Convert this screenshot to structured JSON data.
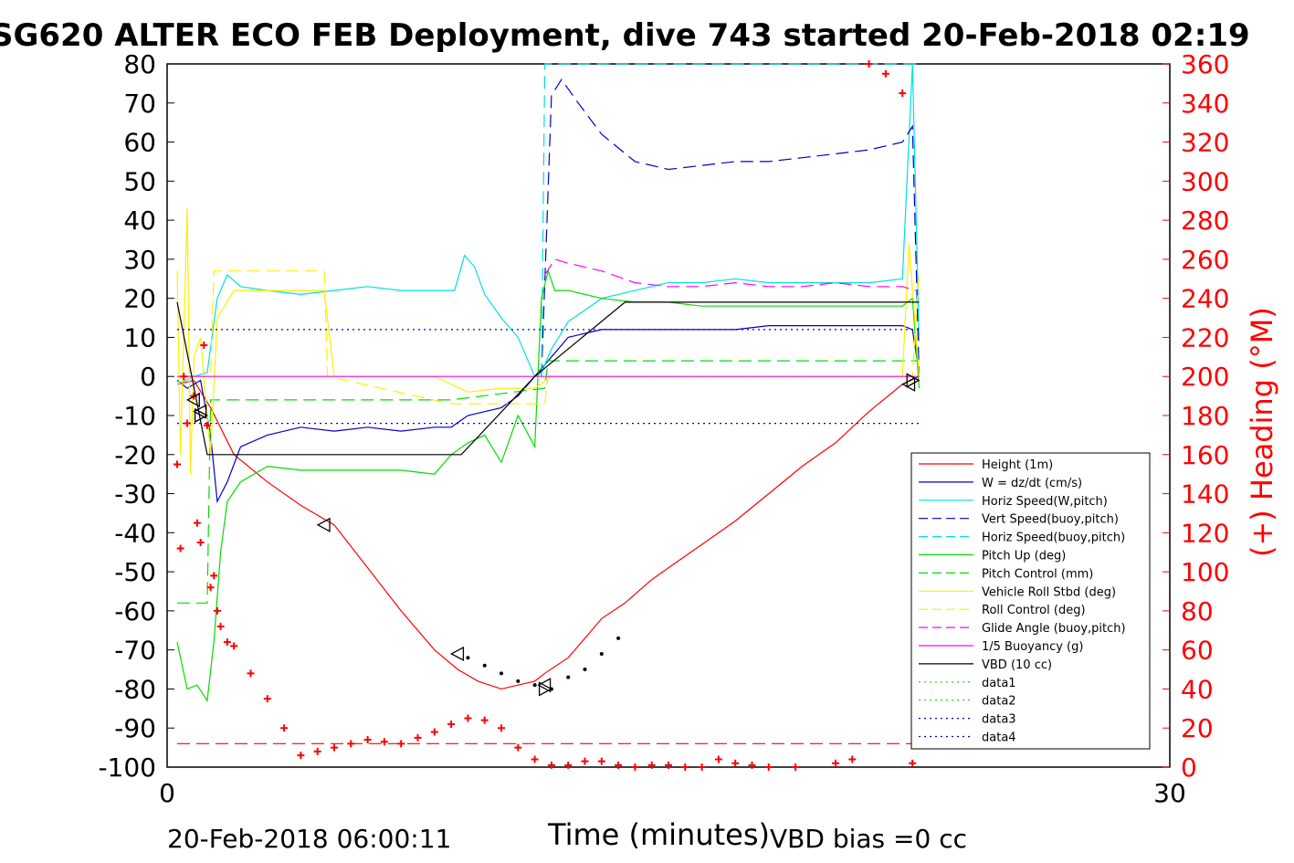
{
  "title": "SG620 ALTER ECO FEB Deployment, dive 743 started 20-Feb-2018 02:19",
  "footer": {
    "start_time": "20-Feb-2018 06:00:11",
    "vbd_bias": "VBD bias =0 cc"
  },
  "colors": {
    "axis": "#000000",
    "right_axis": "#ff0000",
    "red": "#ff0000",
    "blue": "#0000cc",
    "cyan": "#00e0e0",
    "green": "#00dd00",
    "yellow": "#ffee00",
    "magenta": "#ff00ff",
    "black": "#000000"
  },
  "chart_data": {
    "type": "line",
    "xlabel": "Time (minutes)",
    "ylabel": "",
    "y2label": "(+) Heading (°M)",
    "xlim": [
      0,
      30
    ],
    "ylim": [
      -100,
      80
    ],
    "y2lim": [
      0,
      360
    ],
    "xticks": [
      0,
      30
    ],
    "yticks": [
      80,
      70,
      60,
      50,
      40,
      30,
      20,
      10,
      0,
      -10,
      -20,
      -30,
      -40,
      -50,
      -60,
      -70,
      -80,
      -90,
      -100
    ],
    "y2ticks": [
      360,
      340,
      320,
      300,
      280,
      260,
      240,
      220,
      200,
      180,
      160,
      140,
      120,
      100,
      80,
      60,
      40,
      20,
      0
    ],
    "grid": false,
    "legend_position": "lower-right",
    "series": [
      {
        "name": "Height (1m)",
        "color": "#ff0000",
        "style": "solid",
        "x": [
          0.3,
          0.8,
          1.3,
          2.0,
          3.0,
          4.0,
          5.0,
          6.0,
          7.0,
          8.0,
          8.7,
          9.3,
          10.0,
          11.0,
          11.3,
          12.0,
          12.6,
          13.0,
          13.7,
          14.5,
          15.0,
          16.0,
          17.0,
          18.0,
          19.0,
          20.0,
          21.0,
          22.0,
          22.5
        ],
        "y": [
          -2,
          -1,
          -8,
          -20,
          -27,
          -33,
          -38,
          -49,
          -60,
          -70,
          -75,
          -78,
          -80,
          -78,
          -76,
          -72,
          -66,
          -62,
          -58,
          -52,
          -49,
          -43,
          -37,
          -30,
          -23,
          -17,
          -9,
          -2,
          0
        ]
      },
      {
        "name": "W = dz/dt (cm/s)",
        "color": "#0000cc",
        "style": "solid",
        "x": [
          0.3,
          0.6,
          1.0,
          1.3,
          1.5,
          1.8,
          2.2,
          3.0,
          4.0,
          5.0,
          6.0,
          7.0,
          8.0,
          8.5,
          9.0,
          10.0,
          10.5,
          11.0,
          11.5,
          12.0,
          13.0,
          14.0,
          15.0,
          16.0,
          17.0,
          18.0,
          19.0,
          20.0,
          21.0,
          22.0,
          22.3,
          22.5
        ],
        "y": [
          -1,
          -3,
          -1,
          -15,
          -32,
          -27,
          -18,
          -15,
          -13,
          -14,
          -13,
          -14,
          -13,
          -13,
          -10,
          -8,
          -5,
          0,
          5,
          10,
          12,
          12,
          12,
          12,
          12,
          13,
          13,
          13,
          13,
          13,
          12,
          1
        ]
      },
      {
        "name": "Horiz Speed(W,pitch)",
        "color": "#00e0e0",
        "style": "solid",
        "x": [
          0.3,
          0.8,
          1.2,
          1.5,
          1.8,
          2.2,
          3.0,
          4.0,
          5.0,
          6.0,
          7.0,
          8.0,
          8.6,
          8.9,
          9.2,
          9.5,
          10.0,
          10.5,
          11.0,
          11.2,
          11.5,
          12.0,
          13.0,
          14.0,
          15.0,
          16.0,
          17.0,
          18.0,
          19.0,
          20.0,
          21.0,
          22.0,
          22.3,
          22.5
        ],
        "y": [
          -2,
          0,
          1,
          20,
          26,
          23,
          22,
          21,
          22,
          23,
          22,
          22,
          22,
          31,
          28,
          21,
          15,
          10,
          0,
          1,
          7,
          14,
          20,
          22,
          24,
          24,
          25,
          24,
          24,
          24,
          24,
          25,
          80,
          9
        ]
      },
      {
        "name": "Vert Speed(buoy,pitch)",
        "color": "#0000cc",
        "style": "dashed",
        "x": [
          11.2,
          11.5,
          11.8,
          12.3,
          13.0,
          14.0,
          15.0,
          16.0,
          17.0,
          18.0,
          19.0,
          20.0,
          21.0,
          22.0,
          22.3,
          22.5
        ],
        "y": [
          0,
          72,
          76,
          70,
          62,
          55,
          53,
          54,
          55,
          55,
          56,
          57,
          58,
          60,
          64,
          0
        ]
      },
      {
        "name": "Horiz Speed(buoy,pitch)",
        "color": "#00e0e0",
        "style": "dashed",
        "x": [
          11.2,
          11.3,
          11.5,
          22.4,
          22.5
        ],
        "y": [
          0,
          80,
          80,
          80,
          80
        ]
      },
      {
        "name": "Pitch Up (deg)",
        "color": "#00dd00",
        "style": "solid",
        "x": [
          0.3,
          0.6,
          0.9,
          1.2,
          1.4,
          1.6,
          1.8,
          2.2,
          3.0,
          4.0,
          5.0,
          6.0,
          7.0,
          8.0,
          8.5,
          9.0,
          9.5,
          10.0,
          10.5,
          11.0,
          11.2,
          11.4,
          11.6,
          12.0,
          13.0,
          14.0,
          15.0,
          16.0,
          17.0,
          18.0,
          19.0,
          20.0,
          21.0,
          22.0,
          22.3,
          22.5
        ],
        "y": [
          -68,
          -80,
          -79,
          -83,
          -68,
          -45,
          -32,
          -27,
          -23,
          -24,
          -24,
          -24,
          -24,
          -25,
          -20,
          -17,
          -15,
          -22,
          -10,
          -18,
          20,
          27,
          22,
          22,
          20,
          19,
          19,
          18,
          18,
          18,
          18,
          18,
          18,
          18,
          20,
          -3
        ]
      },
      {
        "name": "Pitch Control (mm)",
        "color": "#00dd00",
        "style": "dashed",
        "x": [
          0.3,
          1.0,
          1.2,
          1.3,
          4.0,
          8.5,
          11.3,
          11.4,
          22.3,
          22.5
        ],
        "y": [
          -58,
          -58,
          -58,
          -6,
          -6,
          -6,
          -3,
          4,
          4,
          4
        ]
      },
      {
        "name": "Vehicle Roll Stbd (deg)",
        "color": "#ffee00",
        "style": "solid",
        "x": [
          0.3,
          0.4,
          0.6,
          0.7,
          0.8,
          1.0,
          1.3,
          1.5,
          2.0,
          3.0,
          4.0,
          4.7,
          5.0,
          6.0,
          7.0,
          8.0,
          9.0,
          10.0,
          11.0,
          11.5,
          12.0,
          13.0,
          14.0,
          15.0,
          16.0,
          17.0,
          18.0,
          19.0,
          20.0,
          21.0,
          22.0,
          22.2,
          22.5
        ],
        "y": [
          27,
          -20,
          43,
          -25,
          5,
          10,
          -20,
          15,
          22,
          22,
          22,
          22,
          0,
          0,
          0,
          0,
          -4,
          -3,
          -3,
          0,
          0,
          0,
          0,
          0,
          0,
          0,
          0,
          0,
          0,
          0,
          0,
          34,
          0
        ]
      },
      {
        "name": "Roll Control (deg)",
        "color": "#ffee00",
        "style": "dashed",
        "x": [
          0.3,
          1.3,
          1.4,
          4.7,
          4.8,
          8.5,
          11.3,
          11.4,
          22.3,
          22.5
        ],
        "y": [
          0,
          0,
          27,
          27,
          0,
          -7,
          -7,
          0,
          0,
          27
        ]
      },
      {
        "name": "Glide Angle (buoy,pitch)",
        "color": "#ff00ff",
        "style": "dashed",
        "x": [
          11.3,
          11.6,
          12.0,
          13.0,
          14.0,
          15.0,
          16.0,
          17.0,
          18.0,
          19.0,
          20.0,
          21.0,
          22.0,
          22.4
        ],
        "y": [
          26,
          30,
          29,
          27,
          24,
          23,
          23,
          24,
          23,
          23,
          24,
          23,
          23,
          22
        ]
      },
      {
        "name": "1/5 Buoyancy (g)",
        "color": "#ff00ff",
        "style": "solid",
        "x": [
          0.3,
          22.5
        ],
        "y": [
          0,
          0
        ]
      },
      {
        "name": "VBD (10 cc)",
        "color": "#000000",
        "style": "solid",
        "x": [
          0.3,
          1.2,
          8.8,
          11.0,
          13.7,
          22.5
        ],
        "y": [
          19,
          -20,
          -20,
          0,
          19,
          19
        ]
      },
      {
        "name": "data1",
        "color": "#00dd00",
        "style": "dotted",
        "x": [],
        "y": []
      },
      {
        "name": "data2",
        "color": "#00dd00",
        "style": "dotted",
        "x": [],
        "y": []
      },
      {
        "name": "data3",
        "color": "#0000cc",
        "style": "dotted",
        "x": [
          0.3,
          22.5
        ],
        "y": [
          12,
          12
        ]
      },
      {
        "name": "data4",
        "color": "#0000cc",
        "style": "dotted",
        "x": [
          0.3,
          22.5
        ],
        "y": [
          -12,
          -12
        ]
      }
    ],
    "extra_lines": [
      {
        "name": "heading reference",
        "color": "#ff0000",
        "style": "dashed",
        "axis": "right",
        "x": [
          0.3,
          22.5
        ],
        "y": [
          12,
          12
        ]
      }
    ],
    "heading": {
      "axis": "right",
      "color": "#ff0000",
      "marker": "+",
      "x": [
        0.3,
        0.4,
        0.5,
        0.6,
        0.8,
        0.9,
        1.0,
        1.1,
        1.2,
        1.3,
        1.4,
        1.5,
        1.6,
        1.8,
        2.0,
        2.5,
        3.0,
        3.5,
        4.0,
        4.5,
        5.0,
        5.5,
        6.0,
        6.5,
        7.0,
        7.5,
        8.0,
        8.5,
        9.0,
        9.5,
        10.0,
        10.5,
        11.0,
        11.5,
        12.0,
        12.5,
        13.0,
        13.5,
        14.0,
        14.5,
        15.0,
        15.5,
        16.0,
        16.5,
        17.0,
        17.5,
        18.0,
        18.8,
        20.0,
        20.5,
        21.0,
        21.5,
        22.0,
        22.3
      ],
      "y": [
        155,
        112,
        200,
        176,
        190,
        125,
        115,
        216,
        175,
        92,
        98,
        80,
        72,
        64,
        62,
        48,
        35,
        20,
        6,
        8,
        10,
        12,
        14,
        13,
        12,
        15,
        18,
        22,
        25,
        24,
        20,
        10,
        4,
        1,
        1,
        3,
        3,
        1,
        0,
        1,
        1,
        0,
        0,
        4,
        2,
        1,
        0,
        0,
        2,
        4,
        360,
        355,
        345,
        2
      ]
    },
    "markers": [
      {
        "symbol": "triangle-left",
        "x": [
          0.8,
          1.0,
          8.7,
          11.3,
          22.2
        ],
        "y": [
          -6,
          -9,
          -71,
          -79,
          -2
        ]
      },
      {
        "symbol": "triangle-left",
        "x": [
          4.7
        ],
        "y": [
          -38
        ]
      },
      {
        "symbol": "triangle-right",
        "x": [
          1.0,
          11.3,
          22.3
        ],
        "y": [
          -10,
          -80,
          -1
        ]
      },
      {
        "symbol": "dot",
        "x": [
          9.0,
          9.5,
          10.0,
          10.5,
          11.0,
          11.5,
          12.0,
          12.5,
          13.0,
          13.5
        ],
        "y": [
          -72,
          -74,
          -76,
          -78,
          -79,
          -80,
          -77,
          -75,
          -71,
          -67
        ]
      }
    ]
  }
}
